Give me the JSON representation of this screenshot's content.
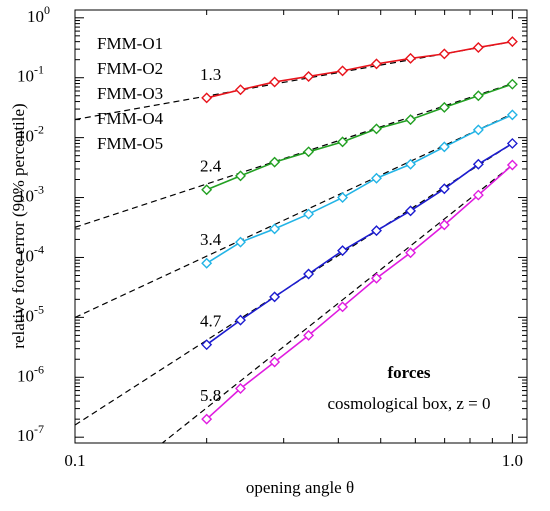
{
  "chart_data": {
    "type": "line",
    "x_label": "opening angle  θ",
    "y_label": "relative force error (90% percentile)",
    "log_x": true,
    "log_y": true,
    "grid": false,
    "xlim": [
      0.1,
      1.08
    ],
    "ylim": [
      8e-08,
      1.35
    ],
    "xticks": [
      0.1,
      {
        "value": 1,
        "label": "1.0"
      }
    ],
    "yticks": [
      {
        "value": 1,
        "label": "10",
        "exponent": "0"
      },
      {
        "value": 0.1,
        "label": "10",
        "exponent": "-1"
      },
      {
        "value": 0.01,
        "label": "10",
        "exponent": "-2"
      },
      {
        "value": 0.001,
        "label": "10",
        "exponent": "-3"
      },
      {
        "value": 0.0001,
        "label": "10",
        "exponent": "-4"
      },
      {
        "value": 1e-05,
        "label": "10",
        "exponent": "-5"
      },
      {
        "value": 1e-06,
        "label": "10",
        "exponent": "-6"
      },
      {
        "value": 1e-07,
        "label": "10",
        "exponent": "-7"
      }
    ],
    "x": [
      0.2,
      0.239,
      0.286,
      0.342,
      0.409,
      0.489,
      0.585,
      0.699,
      0.836,
      1.0
    ],
    "series": [
      {
        "name": "FMM-O1",
        "color": "#e8141c",
        "values": [
          0.046,
          0.063,
          0.085,
          0.105,
          0.13,
          0.17,
          0.21,
          0.25,
          0.32,
          0.4
        ]
      },
      {
        "name": "FMM-O2",
        "color": "#22a022",
        "values": [
          0.00135,
          0.0023,
          0.0039,
          0.0058,
          0.0085,
          0.014,
          0.02,
          0.032,
          0.05,
          0.078
        ]
      },
      {
        "name": "FMM-O3",
        "color": "#22b4e6",
        "values": [
          8e-05,
          0.00018,
          0.0003,
          0.00053,
          0.001,
          0.0021,
          0.0036,
          0.007,
          0.0135,
          0.024
        ]
      },
      {
        "name": "FMM-O4",
        "color": "#1c1cd0",
        "values": [
          3.5e-06,
          9e-06,
          2.2e-05,
          5.3e-05,
          0.00013,
          0.00028,
          0.0006,
          0.0014,
          0.0036,
          0.008
        ]
      },
      {
        "name": "FMM-O5",
        "color": "#e01ce0",
        "values": [
          2e-07,
          6.5e-07,
          1.8e-06,
          5e-06,
          1.5e-05,
          4.5e-05,
          0.00012,
          0.00035,
          0.0011,
          0.0035
        ]
      }
    ],
    "fits": [
      {
        "slope": 1.3,
        "amplitude": 0.4
      },
      {
        "slope": 2.4,
        "amplitude": 0.08
      },
      {
        "slope": 3.4,
        "amplitude": 0.025
      },
      {
        "slope": 4.7,
        "amplitude": 0.008
      },
      {
        "slope": 5.8,
        "amplitude": 0.0035
      }
    ],
    "annotations": [
      "forces",
      "cosmological box, z = 0"
    ]
  }
}
